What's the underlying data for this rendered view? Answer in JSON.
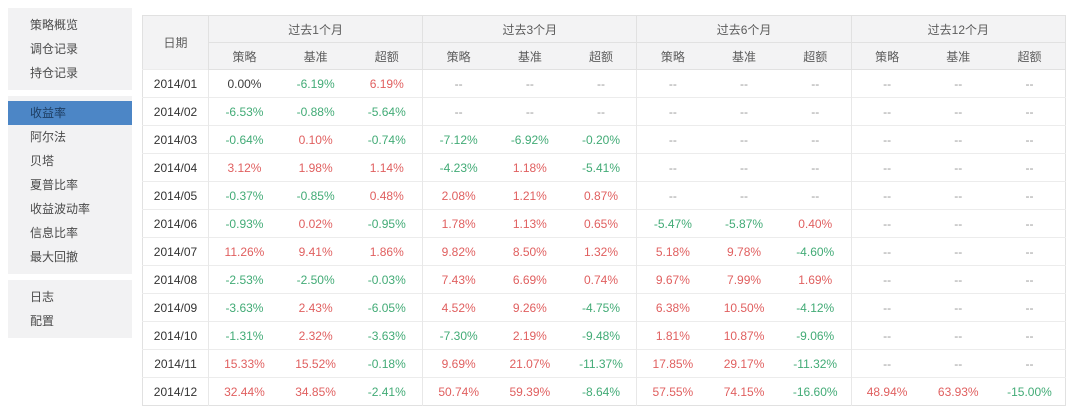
{
  "colors": {
    "accent": "#4c86c6",
    "positive_red": "#e05f5f",
    "negative_green": "#42ab76",
    "muted_gray": "#9a9a9a",
    "sidebar_bg": "#f2f2f3",
    "header_bg": "#f3f3f4"
  },
  "sidebar": {
    "groups": [
      {
        "items": [
          {
            "id": "strategy-overview",
            "label": "策略概览",
            "selected": false
          },
          {
            "id": "rebalance-records",
            "label": "调仓记录",
            "selected": false
          },
          {
            "id": "position-records",
            "label": "持仓记录",
            "selected": false
          }
        ]
      },
      {
        "items": [
          {
            "id": "returns",
            "label": "收益率",
            "selected": true
          },
          {
            "id": "alpha",
            "label": "阿尔法",
            "selected": false
          },
          {
            "id": "beta",
            "label": "贝塔",
            "selected": false
          },
          {
            "id": "sharpe-ratio",
            "label": "夏普比率",
            "selected": false
          },
          {
            "id": "return-volatility",
            "label": "收益波动率",
            "selected": false
          },
          {
            "id": "information-ratio",
            "label": "信息比率",
            "selected": false
          },
          {
            "id": "max-drawdown",
            "label": "最大回撤",
            "selected": false
          }
        ]
      },
      {
        "items": [
          {
            "id": "logs",
            "label": "日志",
            "selected": false
          },
          {
            "id": "settings",
            "label": "配置",
            "selected": false
          }
        ]
      }
    ]
  },
  "table": {
    "date_header": "日期",
    "groups": [
      "过去1个月",
      "过去3个月",
      "过去6个月",
      "过去12个月"
    ],
    "sub_headers": [
      "策略",
      "基准",
      "超额"
    ],
    "rows": [
      {
        "date": "2014/01",
        "values": [
          "0.00%",
          "-6.19%",
          "6.19%",
          "--",
          "--",
          "--",
          "--",
          "--",
          "--",
          "--",
          "--",
          "--"
        ]
      },
      {
        "date": "2014/02",
        "values": [
          "-6.53%",
          "-0.88%",
          "-5.64%",
          "--",
          "--",
          "--",
          "--",
          "--",
          "--",
          "--",
          "--",
          "--"
        ]
      },
      {
        "date": "2014/03",
        "values": [
          "-0.64%",
          "0.10%",
          "-0.74%",
          "-7.12%",
          "-6.92%",
          "-0.20%",
          "--",
          "--",
          "--",
          "--",
          "--",
          "--"
        ]
      },
      {
        "date": "2014/04",
        "values": [
          "3.12%",
          "1.98%",
          "1.14%",
          "-4.23%",
          "1.18%",
          "-5.41%",
          "--",
          "--",
          "--",
          "--",
          "--",
          "--"
        ]
      },
      {
        "date": "2014/05",
        "values": [
          "-0.37%",
          "-0.85%",
          "0.48%",
          "2.08%",
          "1.21%",
          "0.87%",
          "--",
          "--",
          "--",
          "--",
          "--",
          "--"
        ]
      },
      {
        "date": "2014/06",
        "values": [
          "-0.93%",
          "0.02%",
          "-0.95%",
          "1.78%",
          "1.13%",
          "0.65%",
          "-5.47%",
          "-5.87%",
          "0.40%",
          "--",
          "--",
          "--"
        ]
      },
      {
        "date": "2014/07",
        "values": [
          "11.26%",
          "9.41%",
          "1.86%",
          "9.82%",
          "8.50%",
          "1.32%",
          "5.18%",
          "9.78%",
          "-4.60%",
          "--",
          "--",
          "--"
        ]
      },
      {
        "date": "2014/08",
        "values": [
          "-2.53%",
          "-2.50%",
          "-0.03%",
          "7.43%",
          "6.69%",
          "0.74%",
          "9.67%",
          "7.99%",
          "1.69%",
          "--",
          "--",
          "--"
        ]
      },
      {
        "date": "2014/09",
        "values": [
          "-3.63%",
          "2.43%",
          "-6.05%",
          "4.52%",
          "9.26%",
          "-4.75%",
          "6.38%",
          "10.50%",
          "-4.12%",
          "--",
          "--",
          "--"
        ]
      },
      {
        "date": "2014/10",
        "values": [
          "-1.31%",
          "2.32%",
          "-3.63%",
          "-7.30%",
          "2.19%",
          "-9.48%",
          "1.81%",
          "10.87%",
          "-9.06%",
          "--",
          "--",
          "--"
        ]
      },
      {
        "date": "2014/11",
        "values": [
          "15.33%",
          "15.52%",
          "-0.18%",
          "9.69%",
          "21.07%",
          "-11.37%",
          "17.85%",
          "29.17%",
          "-11.32%",
          "--",
          "--",
          "--"
        ]
      },
      {
        "date": "2014/12",
        "values": [
          "32.44%",
          "34.85%",
          "-2.41%",
          "50.74%",
          "59.39%",
          "-8.64%",
          "57.55%",
          "74.15%",
          "-16.60%",
          "48.94%",
          "63.93%",
          "-15.00%"
        ]
      }
    ]
  }
}
